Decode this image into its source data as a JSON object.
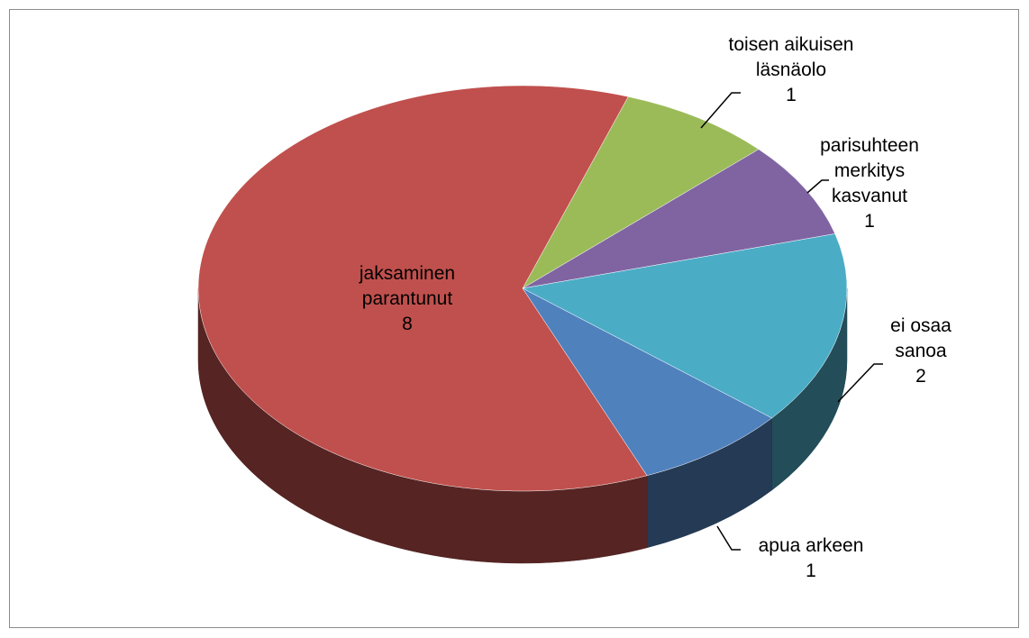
{
  "chart_data": {
    "type": "pie3d",
    "categories": [
      "toisen aikuisen läsnäolo",
      "parisuhteen merkitys kasvanut",
      "ei osaa sanoa",
      "apua arkeen",
      "jaksaminen parantunut"
    ],
    "values": [
      1,
      1,
      2,
      1,
      8
    ],
    "colors": [
      "#9bbb59",
      "#8064a2",
      "#4bacc6",
      "#4f81bd",
      "#c0504d"
    ]
  }
}
